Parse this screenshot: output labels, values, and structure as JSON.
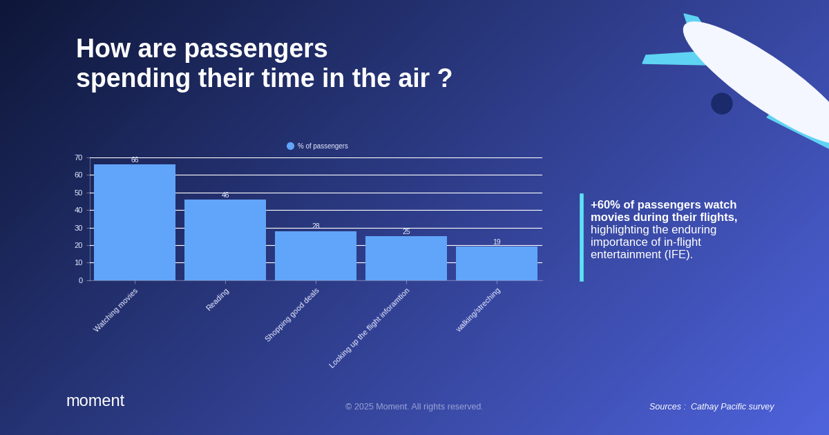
{
  "chart_data": {
    "type": "bar",
    "title": "How are passengers\nspending their time in the air ?",
    "categories": [
      "Watching movies",
      "Reading",
      "Shopping good deals",
      "Looking up the flight inforamtion",
      "walking/streching"
    ],
    "series": [
      {
        "name": "% of passengers",
        "color": "#60a5fa",
        "values": [
          66,
          46,
          28,
          25,
          19
        ]
      }
    ],
    "ylim": [
      0,
      70
    ],
    "yticks": [
      0,
      10,
      20,
      30,
      40,
      50,
      60,
      70
    ],
    "grid": true,
    "data_labels": true,
    "legend": "upper center",
    "note": [
      "+60% of passengers watch",
      "movies during their flights,",
      "highlighting the enduring",
      "importance of in-flight",
      "entertainment (IFE)."
    ],
    "footer": {
      "logo": "moment",
      "copyright": "© 2025 Moment. All rights reserved.",
      "source": "Sources :  Cathay Pacific survey"
    }
  }
}
